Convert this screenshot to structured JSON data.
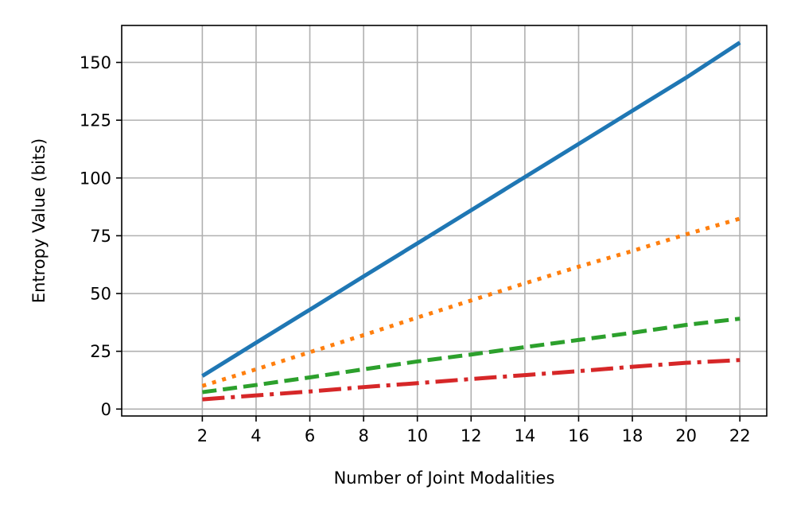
{
  "chart_data": {
    "type": "line",
    "title": "",
    "xlabel": "Number of Joint Modalities",
    "ylabel": "Entropy Value (bits)",
    "xlim": [
      -1.0,
      23.0
    ],
    "ylim": [
      -3.0,
      166.0
    ],
    "xticks": [
      2,
      4,
      6,
      8,
      10,
      12,
      14,
      16,
      18,
      20,
      22
    ],
    "yticks": [
      0,
      25,
      50,
      75,
      100,
      125,
      150
    ],
    "grid": true,
    "legend": "none",
    "x": [
      2,
      4,
      6,
      8,
      10,
      12,
      14,
      16,
      18,
      20,
      22
    ],
    "series": [
      {
        "values": [
          14.3,
          28.7,
          43.0,
          57.4,
          71.7,
          86.0,
          100.4,
          114.7,
          129.1,
          143.4,
          158.6
        ],
        "color": "#1f77b4",
        "style": "solid"
      },
      {
        "values": [
          10.0,
          17.2,
          24.6,
          32.0,
          39.6,
          47.0,
          54.4,
          61.6,
          68.4,
          75.6,
          82.4
        ],
        "color": "#ff7f0e",
        "style": "dotted"
      },
      {
        "values": [
          7.3,
          10.4,
          13.7,
          17.2,
          20.6,
          23.6,
          26.8,
          29.9,
          33.0,
          36.4,
          39.1
        ],
        "color": "#2ca02c",
        "style": "dashed"
      },
      {
        "values": [
          4.2,
          5.9,
          7.6,
          9.5,
          11.2,
          13.0,
          14.7,
          16.4,
          18.3,
          20.0,
          21.2
        ],
        "color": "#d62728",
        "style": "dashdot"
      }
    ]
  }
}
